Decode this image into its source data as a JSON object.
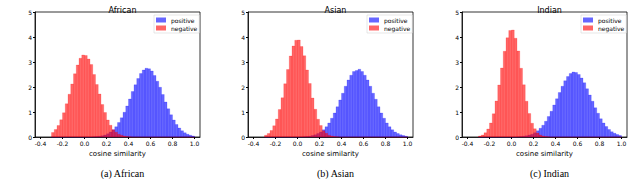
{
  "chart_data": [
    {
      "type": "histogram",
      "title": "African",
      "caption": "(a) African",
      "x_label": "cosine similarity",
      "bins": [
        -0.3,
        -0.275,
        -0.25,
        -0.225,
        -0.2,
        -0.175,
        -0.15,
        -0.125,
        -0.1,
        -0.075,
        -0.05,
        -0.025,
        0,
        0.025,
        0.05,
        0.075,
        0.1,
        0.125,
        0.15,
        0.175,
        0.2,
        0.225,
        0.25,
        0.275,
        0.3,
        0.325,
        0.35,
        0.375,
        0.4,
        0.425,
        0.45,
        0.475,
        0.5,
        0.525,
        0.55,
        0.575,
        0.6,
        0.625,
        0.65,
        0.675,
        0.7,
        0.725,
        0.75,
        0.775,
        0.8,
        0.825,
        0.85,
        0.875,
        0.9,
        0.925,
        0.95,
        0.975,
        1.0
      ],
      "series": [
        {
          "name": "positive",
          "color": "#0000ff",
          "values": [
            0,
            0,
            0,
            0,
            0,
            0,
            0,
            0,
            0,
            0,
            0,
            0,
            0,
            0,
            0,
            0.01,
            0.02,
            0.03,
            0.05,
            0.08,
            0.13,
            0.2,
            0.29,
            0.41,
            0.58,
            0.77,
            0.99,
            1.24,
            1.52,
            1.82,
            2.09,
            2.34,
            2.54,
            2.68,
            2.75,
            2.73,
            2.64,
            2.46,
            2.23,
            1.99,
            1.7,
            1.4,
            1.13,
            0.89,
            0.68,
            0.5,
            0.36,
            0.25,
            0.17,
            0.11,
            0.07,
            0.04
          ]
        },
        {
          "name": "negative",
          "color": "#ff0000",
          "values": [
            0.18,
            0.3,
            0.46,
            0.69,
            0.97,
            1.33,
            1.71,
            2.12,
            2.53,
            2.88,
            3.15,
            3.28,
            3.26,
            3.12,
            2.9,
            2.5,
            2.1,
            1.72,
            1.3,
            0.98,
            0.68,
            0.47,
            0.29,
            0.19,
            0.11,
            0.07,
            0.04,
            0.02,
            0.01,
            0,
            0,
            0,
            0,
            0,
            0,
            0,
            0,
            0,
            0,
            0,
            0,
            0,
            0,
            0,
            0,
            0,
            0,
            0,
            0,
            0,
            0,
            0
          ]
        }
      ],
      "xlim": [
        -0.45,
        1.05
      ],
      "ylim": [
        0,
        5
      ],
      "xticks": [
        -0.4,
        -0.2,
        {
          "value": 0,
          "label": "0.0"
        },
        0.2,
        0.4,
        0.6,
        0.8,
        {
          "value": 1,
          "label": "1.0"
        }
      ],
      "yticks": [
        0,
        1,
        2,
        3,
        4,
        5
      ],
      "grid": false,
      "legend": "upper right"
    },
    {
      "type": "histogram",
      "title": "Asian",
      "caption": "(b) Asian",
      "x_label": "cosine similarity",
      "bins": [
        -0.3,
        -0.275,
        -0.25,
        -0.225,
        -0.2,
        -0.175,
        -0.15,
        -0.125,
        -0.1,
        -0.075,
        -0.05,
        -0.025,
        0,
        0.025,
        0.05,
        0.075,
        0.1,
        0.125,
        0.15,
        0.175,
        0.2,
        0.225,
        0.25,
        0.275,
        0.3,
        0.325,
        0.35,
        0.375,
        0.4,
        0.425,
        0.45,
        0.475,
        0.5,
        0.525,
        0.55,
        0.575,
        0.6,
        0.625,
        0.65,
        0.675,
        0.7,
        0.725,
        0.75,
        0.775,
        0.8,
        0.825,
        0.85,
        0.875,
        0.9,
        0.925,
        0.95,
        0.975,
        1.0
      ],
      "series": [
        {
          "name": "positive",
          "color": "#0000ff",
          "values": [
            0,
            0,
            0,
            0,
            0,
            0,
            0,
            0,
            0,
            0,
            0,
            0,
            0,
            0,
            0.01,
            0.02,
            0.03,
            0.06,
            0.09,
            0.14,
            0.2,
            0.29,
            0.41,
            0.56,
            0.75,
            0.96,
            1.21,
            1.48,
            1.75,
            2.03,
            2.28,
            2.47,
            2.62,
            2.66,
            2.71,
            2.62,
            2.47,
            2.28,
            2.03,
            1.75,
            1.51,
            1.21,
            0.96,
            0.75,
            0.56,
            0.41,
            0.29,
            0.2,
            0.14,
            0.09,
            0.06,
            0.03
          ]
        },
        {
          "name": "negative",
          "color": "#ff0000",
          "values": [
            0.07,
            0.14,
            0.26,
            0.45,
            0.72,
            1.1,
            1.57,
            2.13,
            2.7,
            3.24,
            3.64,
            3.87,
            3.88,
            3.62,
            3.25,
            2.68,
            2.14,
            1.56,
            1.11,
            0.71,
            0.46,
            0.25,
            0.15,
            0.07,
            0.04,
            0.02,
            0.01,
            0,
            0,
            0,
            0,
            0,
            0,
            0,
            0,
            0,
            0,
            0,
            0,
            0,
            0,
            0,
            0,
            0,
            0,
            0,
            0,
            0,
            0,
            0,
            0,
            0
          ]
        }
      ],
      "xlim": [
        -0.45,
        1.05
      ],
      "ylim": [
        0,
        5
      ],
      "xticks": [
        -0.4,
        -0.2,
        {
          "value": 0,
          "label": "0.0"
        },
        0.2,
        0.4,
        0.6,
        0.8,
        {
          "value": 1,
          "label": "1.0"
        }
      ],
      "yticks": [
        0,
        1,
        2,
        3,
        4,
        5
      ],
      "grid": false,
      "legend": "upper right"
    },
    {
      "type": "histogram",
      "title": "Indian",
      "caption": "(c) Indian",
      "x_label": "cosine similarity",
      "bins": [
        -0.3,
        -0.275,
        -0.25,
        -0.225,
        -0.2,
        -0.175,
        -0.15,
        -0.125,
        -0.1,
        -0.075,
        -0.05,
        -0.025,
        0,
        0.025,
        0.05,
        0.075,
        0.1,
        0.125,
        0.15,
        0.175,
        0.2,
        0.225,
        0.25,
        0.275,
        0.3,
        0.325,
        0.35,
        0.375,
        0.4,
        0.425,
        0.45,
        0.475,
        0.5,
        0.525,
        0.55,
        0.575,
        0.6,
        0.625,
        0.65,
        0.675,
        0.7,
        0.725,
        0.75,
        0.775,
        0.8,
        0.825,
        0.85,
        0.875,
        0.9,
        0.925,
        0.95,
        0.975,
        1.0
      ],
      "series": [
        {
          "name": "positive",
          "color": "#0000ff",
          "values": [
            0,
            0,
            0,
            0,
            0,
            0,
            0,
            0,
            0,
            0,
            0,
            0,
            0,
            0,
            0.01,
            0.02,
            0.03,
            0.05,
            0.08,
            0.11,
            0.17,
            0.25,
            0.35,
            0.47,
            0.63,
            0.82,
            1.03,
            1.28,
            1.53,
            1.78,
            2.03,
            2.25,
            2.42,
            2.54,
            2.6,
            2.58,
            2.5,
            2.36,
            2.17,
            1.93,
            1.68,
            1.43,
            1.17,
            0.95,
            0.73,
            0.56,
            0.42,
            0.3,
            0.21,
            0.15,
            0.1,
            0.06
          ]
        },
        {
          "name": "negative",
          "color": "#ff0000",
          "values": [
            0.04,
            0.08,
            0.17,
            0.32,
            0.56,
            0.93,
            1.44,
            2.08,
            2.76,
            3.43,
            3.97,
            4.26,
            4.28,
            3.95,
            3.44,
            2.75,
            2.09,
            1.43,
            0.94,
            0.55,
            0.33,
            0.16,
            0.08,
            0.04,
            0.02,
            0.01,
            0,
            0,
            0,
            0,
            0,
            0,
            0,
            0,
            0,
            0,
            0,
            0,
            0,
            0,
            0,
            0,
            0,
            0,
            0,
            0,
            0,
            0,
            0,
            0,
            0,
            0
          ]
        }
      ],
      "xlim": [
        -0.45,
        1.05
      ],
      "ylim": [
        0,
        5
      ],
      "xticks": [
        -0.4,
        -0.2,
        {
          "value": 0,
          "label": "0.0"
        },
        0.2,
        0.4,
        0.6,
        0.8,
        {
          "value": 1,
          "label": "1.0"
        }
      ],
      "yticks": [
        0,
        1,
        2,
        3,
        4,
        5
      ],
      "grid": false,
      "legend": "upper right"
    }
  ]
}
